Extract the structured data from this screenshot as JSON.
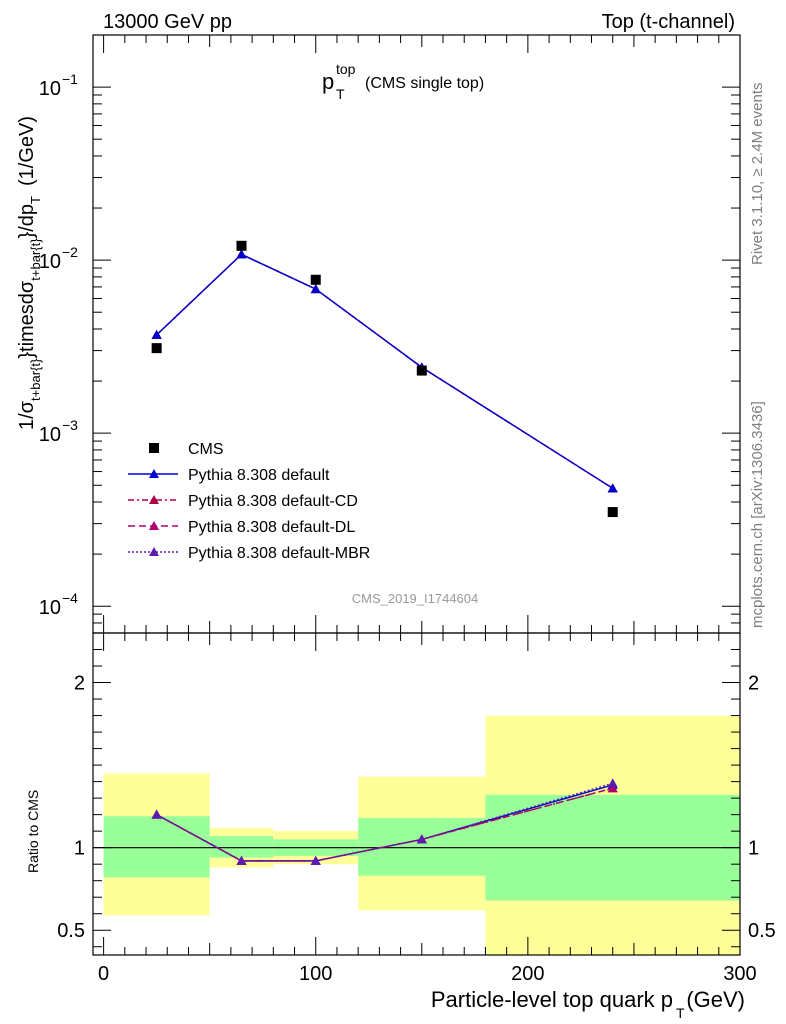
{
  "header": {
    "left": "13000 GeV pp",
    "right": "Top (t-channel)"
  },
  "title": {
    "main": "p",
    "sup": "top",
    "sub": "T",
    "suffix": "(CMS single top)"
  },
  "side_text": {
    "rivet": "Rivet 3.1.10, ≥ 2.4M events",
    "mcplots": "mcplots.cern.ch [arXiv:1306.3436]"
  },
  "watermark": "CMS_2019_I1744604",
  "top_ylabel": {
    "a": "1/σ",
    "a_sub": "t+bar{t}",
    "b": "}timesdσ",
    "b_sub": "t+bar{t}",
    "c": "}/dp",
    "c_sub": "T",
    "d": "(1/GeV)"
  },
  "xlabel": {
    "main": "Particle-level top quark p",
    "sub": "T",
    "unit": "(GeV)"
  },
  "ratio_ylabel": "Ratio to CMS",
  "colors": {
    "data": "#000000",
    "default": "#0000cc",
    "cd": "#b0004a",
    "dl": "#b0006e",
    "mbr": "#5a1cb0",
    "band_inner": "#99ff99",
    "band_outer": "#ffff99"
  },
  "legend": [
    {
      "key": "cms",
      "label": "CMS"
    },
    {
      "key": "default",
      "label": "Pythia 8.308 default"
    },
    {
      "key": "cd",
      "label": "Pythia 8.308 default-CD"
    },
    {
      "key": "dl",
      "label": "Pythia 8.308 default-DL"
    },
    {
      "key": "mbr",
      "label": "Pythia 8.308 default-MBR"
    }
  ],
  "chart_data": {
    "type": "scatter",
    "x_range": [
      -5,
      300
    ],
    "x_ticks": [
      0,
      100,
      200,
      300
    ],
    "top": {
      "y_scale": "log",
      "y_range": [
        7e-05,
        0.2
      ],
      "y_ticks": [
        {
          "value": 0.1,
          "mant": "10",
          "exp": "−1"
        },
        {
          "value": 0.01,
          "mant": "10",
          "exp": "−2"
        },
        {
          "value": 0.001,
          "mant": "10",
          "exp": "−3"
        },
        {
          "value": 0.0001,
          "mant": "10",
          "exp": "−4"
        }
      ],
      "data": {
        "name": "CMS",
        "x": [
          25,
          65,
          100,
          150,
          240
        ],
        "y": [
          0.0031,
          0.0121,
          0.0077,
          0.0023,
          0.00035
        ]
      },
      "series": [
        {
          "name": "Pythia 8.308 default",
          "key": "default",
          "x": [
            25,
            65,
            100,
            150,
            240
          ],
          "y": [
            0.0037,
            0.0108,
            0.0068,
            0.0024,
            0.00048
          ]
        },
        {
          "name": "Pythia 8.308 default-CD",
          "key": "cd",
          "x": [
            25,
            65,
            100,
            150,
            240
          ],
          "y": [
            0.0037,
            0.0108,
            0.0068,
            0.0024,
            0.00048
          ]
        },
        {
          "name": "Pythia 8.308 default-DL",
          "key": "dl",
          "x": [
            25,
            65,
            100,
            150,
            240
          ],
          "y": [
            0.0037,
            0.0108,
            0.0068,
            0.0024,
            0.00048
          ]
        },
        {
          "name": "Pythia 8.308 default-MBR",
          "key": "mbr",
          "x": [
            25,
            65,
            100,
            150,
            240
          ],
          "y": [
            0.0037,
            0.0108,
            0.0068,
            0.0024,
            0.00048
          ]
        }
      ]
    },
    "ratio": {
      "y_range": [
        0.35,
        2.3
      ],
      "y_ticks": [
        {
          "value": 2,
          "label": "2"
        },
        {
          "value": 1,
          "label": "1"
        },
        {
          "value": 0.5,
          "label": "0.5"
        }
      ],
      "bands": [
        {
          "x0": 0,
          "x1": 50,
          "inner": [
            0.82,
            1.19
          ],
          "outer": [
            0.59,
            1.45
          ]
        },
        {
          "x0": 50,
          "x1": 80,
          "inner": [
            0.94,
            1.07
          ],
          "outer": [
            0.88,
            1.12
          ]
        },
        {
          "x0": 80,
          "x1": 120,
          "inner": [
            0.95,
            1.05
          ],
          "outer": [
            0.9,
            1.1
          ]
        },
        {
          "x0": 120,
          "x1": 180,
          "inner": [
            0.83,
            1.18
          ],
          "outer": [
            0.62,
            1.43
          ]
        },
        {
          "x0": 180,
          "x1": 300,
          "inner": [
            0.68,
            1.32
          ],
          "outer": [
            0.35,
            1.8
          ]
        }
      ],
      "series": [
        {
          "name": "Pythia 8.308 default",
          "key": "default",
          "x": [
            25,
            65,
            100,
            150,
            240
          ],
          "y": [
            1.2,
            0.92,
            0.92,
            1.05,
            1.38
          ]
        },
        {
          "name": "Pythia 8.308 default-CD",
          "key": "cd",
          "x": [
            25,
            65,
            100,
            150,
            240
          ],
          "y": [
            1.2,
            0.92,
            0.92,
            1.05,
            1.36
          ]
        },
        {
          "name": "Pythia 8.308 default-DL",
          "key": "dl",
          "x": [
            25,
            65,
            100,
            150,
            240
          ],
          "y": [
            1.2,
            0.92,
            0.92,
            1.05,
            1.36
          ]
        },
        {
          "name": "Pythia 8.308 default-MBR",
          "key": "mbr",
          "x": [
            25,
            65,
            100,
            150,
            240
          ],
          "y": [
            1.2,
            0.92,
            0.92,
            1.05,
            1.39
          ]
        }
      ]
    }
  }
}
